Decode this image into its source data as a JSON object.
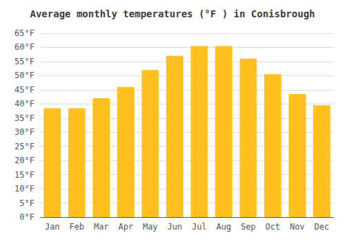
{
  "chart_data": {
    "type": "bar",
    "title": "Average monthly temperatures (°F ) in Conisbrough",
    "categories": [
      "Jan",
      "Feb",
      "Mar",
      "Apr",
      "May",
      "Jun",
      "Jul",
      "Aug",
      "Sep",
      "Oct",
      "Nov",
      "Dec"
    ],
    "values": [
      38.5,
      38.5,
      42,
      46,
      52,
      57,
      60.5,
      60.5,
      56,
      50.5,
      43.5,
      39.5
    ],
    "color": "#FFC020",
    "ylim": [
      0,
      65
    ],
    "yticks": [
      {
        "value": 0,
        "label": "0°F"
      },
      {
        "value": 5,
        "label": "5°F"
      },
      {
        "value": 10,
        "label": "10°F"
      },
      {
        "value": 15,
        "label": "15°F"
      },
      {
        "value": 20,
        "label": "20°F"
      },
      {
        "value": 25,
        "label": "25°F"
      },
      {
        "value": 30,
        "label": "30°F"
      },
      {
        "value": 35,
        "label": "35°F"
      },
      {
        "value": 40,
        "label": "40°F"
      },
      {
        "value": 45,
        "label": "45°F"
      },
      {
        "value": 50,
        "label": "50°F"
      },
      {
        "value": 55,
        "label": "55°F"
      },
      {
        "value": 60,
        "label": "60°F"
      },
      {
        "value": 65,
        "label": "65°F"
      }
    ],
    "grid": true
  }
}
